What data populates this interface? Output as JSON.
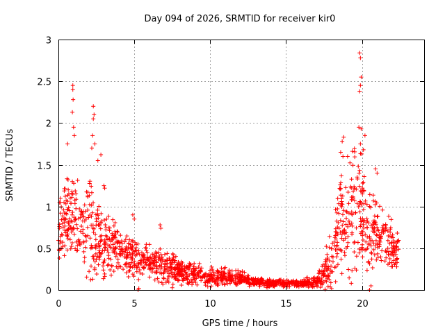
{
  "chart_data": {
    "type": "scatter",
    "title": "Day 094 of 2026, SRMTID for receiver kir0",
    "xlabel": "GPS time / hours",
    "ylabel": "SRMTID / TECUs",
    "xlim": [
      0,
      24.1
    ],
    "ylim": [
      0,
      3
    ],
    "xticks": [
      0,
      5,
      10,
      15,
      20
    ],
    "xtick_labels": [
      "0",
      "5",
      "10",
      "15",
      "20"
    ],
    "yticks": [
      0,
      0.5,
      1,
      1.5,
      2,
      2.5,
      3
    ],
    "ytick_labels": [
      "0",
      "0.5",
      "1",
      "1.5",
      "2",
      "2.5",
      "3"
    ],
    "grid": true,
    "marker": "+",
    "color": "#ff0000",
    "series": [
      {
        "name": "SRMTID",
        "envelope": {
          "hours": [
            0,
            0.5,
            1,
            1.5,
            2,
            2.5,
            3,
            3.5,
            4,
            5,
            6,
            7,
            8,
            9,
            10,
            11,
            12,
            13,
            14,
            15,
            16,
            17,
            17.5,
            18,
            18.5,
            19,
            19.5,
            20,
            20.5,
            21,
            21.5,
            22,
            22.5
          ],
          "median": [
            0.8,
            0.85,
            0.95,
            0.8,
            0.75,
            0.7,
            0.55,
            0.5,
            0.45,
            0.4,
            0.35,
            0.28,
            0.22,
            0.2,
            0.15,
            0.15,
            0.14,
            0.1,
            0.08,
            0.08,
            0.08,
            0.1,
            0.2,
            0.4,
            0.8,
            0.9,
            1.0,
            0.9,
            0.6,
            0.7,
            0.6,
            0.5,
            0.45
          ],
          "spread": [
            0.4,
            0.35,
            0.4,
            0.35,
            0.45,
            0.4,
            0.3,
            0.25,
            0.2,
            0.18,
            0.15,
            0.15,
            0.1,
            0.1,
            0.08,
            0.07,
            0.06,
            0.04,
            0.03,
            0.03,
            0.03,
            0.06,
            0.15,
            0.3,
            0.45,
            0.45,
            0.5,
            0.5,
            0.4,
            0.35,
            0.25,
            0.2,
            0.15
          ]
        },
        "peaks": [
          {
            "x": 0.95,
            "y": 2.45
          },
          {
            "x": 0.95,
            "y": 2.4
          },
          {
            "x": 0.97,
            "y": 2.28
          },
          {
            "x": 0.92,
            "y": 2.13
          },
          {
            "x": 1.0,
            "y": 1.95
          },
          {
            "x": 1.05,
            "y": 1.85
          },
          {
            "x": 0.6,
            "y": 1.75
          },
          {
            "x": 2.3,
            "y": 2.2
          },
          {
            "x": 2.35,
            "y": 2.1
          },
          {
            "x": 2.3,
            "y": 2.05
          },
          {
            "x": 2.25,
            "y": 1.85
          },
          {
            "x": 2.4,
            "y": 1.75
          },
          {
            "x": 2.2,
            "y": 1.7
          },
          {
            "x": 2.8,
            "y": 1.62
          },
          {
            "x": 2.6,
            "y": 1.55
          },
          {
            "x": 3.0,
            "y": 1.25
          },
          {
            "x": 3.05,
            "y": 1.22
          },
          {
            "x": 4.9,
            "y": 0.9
          },
          {
            "x": 5.0,
            "y": 0.85
          },
          {
            "x": 6.7,
            "y": 0.78
          },
          {
            "x": 6.75,
            "y": 0.74
          },
          {
            "x": 5.25,
            "y": 0.0
          },
          {
            "x": 5.3,
            "y": 0.02
          },
          {
            "x": 19.85,
            "y": 2.84
          },
          {
            "x": 19.9,
            "y": 2.78
          },
          {
            "x": 19.95,
            "y": 2.55
          },
          {
            "x": 19.9,
            "y": 2.45
          },
          {
            "x": 19.85,
            "y": 2.38
          },
          {
            "x": 19.8,
            "y": 1.95
          },
          {
            "x": 19.95,
            "y": 1.93
          },
          {
            "x": 20.2,
            "y": 1.85
          },
          {
            "x": 18.8,
            "y": 1.83
          },
          {
            "x": 18.7,
            "y": 1.78
          },
          {
            "x": 18.6,
            "y": 1.65
          },
          {
            "x": 18.75,
            "y": 1.6
          },
          {
            "x": 19.9,
            "y": 1.75
          },
          {
            "x": 20.1,
            "y": 1.68
          },
          {
            "x": 20.9,
            "y": 1.45
          },
          {
            "x": 21.0,
            "y": 1.4
          },
          {
            "x": 19.3,
            "y": 0.08
          },
          {
            "x": 20.5,
            "y": 0.0
          },
          {
            "x": 20.6,
            "y": 0.05
          }
        ]
      }
    ]
  }
}
